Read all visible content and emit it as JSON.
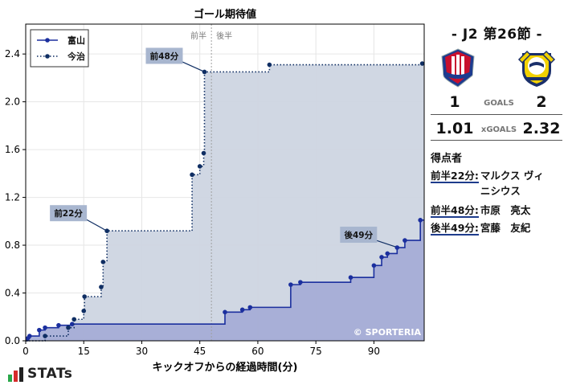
{
  "chart_data": {
    "type": "line",
    "title": "ゴール期待値",
    "xlabel": "キックオフからの経過時間(分)",
    "ylabel": "",
    "xlim": [
      0,
      103
    ],
    "ylim": [
      0,
      2.65
    ],
    "x_ticks": [
      0,
      15,
      30,
      45,
      60,
      75,
      90
    ],
    "y_ticks": [
      0.0,
      0.4,
      0.8,
      1.2,
      1.6,
      2.0,
      2.4
    ],
    "halftime_marker": {
      "x": 48,
      "left_label": "前半",
      "right_label": "後半"
    },
    "legend_position": "top-left",
    "grid": true,
    "series": [
      {
        "name": "富山",
        "color": "#1b2f9e",
        "fill": "#a3abd5",
        "line_style": "solid",
        "end_x": 103,
        "points": [
          {
            "x": 0.5,
            "y": 0.02
          },
          {
            "x": 1,
            "y": 0.04
          },
          {
            "x": 3.5,
            "y": 0.09
          },
          {
            "x": 5,
            "y": 0.11
          },
          {
            "x": 8.5,
            "y": 0.13
          },
          {
            "x": 12,
            "y": 0.14
          },
          {
            "x": 51.5,
            "y": 0.24
          },
          {
            "x": 56,
            "y": 0.26
          },
          {
            "x": 58,
            "y": 0.28
          },
          {
            "x": 68.5,
            "y": 0.47
          },
          {
            "x": 71,
            "y": 0.49
          },
          {
            "x": 84,
            "y": 0.53
          },
          {
            "x": 90,
            "y": 0.63
          },
          {
            "x": 92,
            "y": 0.7
          },
          {
            "x": 93.5,
            "y": 0.73
          },
          {
            "x": 96,
            "y": 0.78
          },
          {
            "x": 98,
            "y": 0.84
          },
          {
            "x": 102,
            "y": 1.01
          }
        ],
        "goal_annotations": [
          {
            "x": 96,
            "y": 0.78,
            "label": "後49分"
          }
        ]
      },
      {
        "name": "今治",
        "color": "#0f2e63",
        "fill": "#cdd5e1",
        "line_style": "dotted",
        "end_x": 103,
        "points": [
          {
            "x": 5,
            "y": 0.04
          },
          {
            "x": 11,
            "y": 0.11
          },
          {
            "x": 12.5,
            "y": 0.18
          },
          {
            "x": 15,
            "y": 0.25
          },
          {
            "x": 15.2,
            "y": 0.37
          },
          {
            "x": 19.5,
            "y": 0.45
          },
          {
            "x": 20,
            "y": 0.66
          },
          {
            "x": 21,
            "y": 0.92
          },
          {
            "x": 43,
            "y": 1.39
          },
          {
            "x": 45,
            "y": 1.46
          },
          {
            "x": 46,
            "y": 1.57
          },
          {
            "x": 46.2,
            "y": 2.25
          },
          {
            "x": 63,
            "y": 2.31
          },
          {
            "x": 102.5,
            "y": 2.32
          }
        ],
        "goal_annotations": [
          {
            "x": 21,
            "y": 0.92,
            "label": "前22分"
          },
          {
            "x": 46.2,
            "y": 2.25,
            "label": "前48分"
          }
        ]
      }
    ],
    "watermark": "© SPORTERIA"
  },
  "match": {
    "title": "- J2 第26節 -",
    "home": {
      "name": "富山",
      "goals": "1",
      "xg": "1.01",
      "crest_color": "#c8102e"
    },
    "away": {
      "name": "今治",
      "goals": "2",
      "xg": "2.32",
      "crest_color": "#f2d100"
    },
    "goals_label": "GOALS",
    "xg_label": "xGOALS",
    "scorers_title": "得点者",
    "scorers": [
      {
        "time": "前半22分:",
        "name": "マルクス ヴィニシウス"
      },
      {
        "time": "前半48分:",
        "name": "市原　亮太"
      },
      {
        "time": "後半49分:",
        "name": "宮藤　友紀"
      }
    ]
  },
  "brand": {
    "logo_text": "STATs"
  }
}
